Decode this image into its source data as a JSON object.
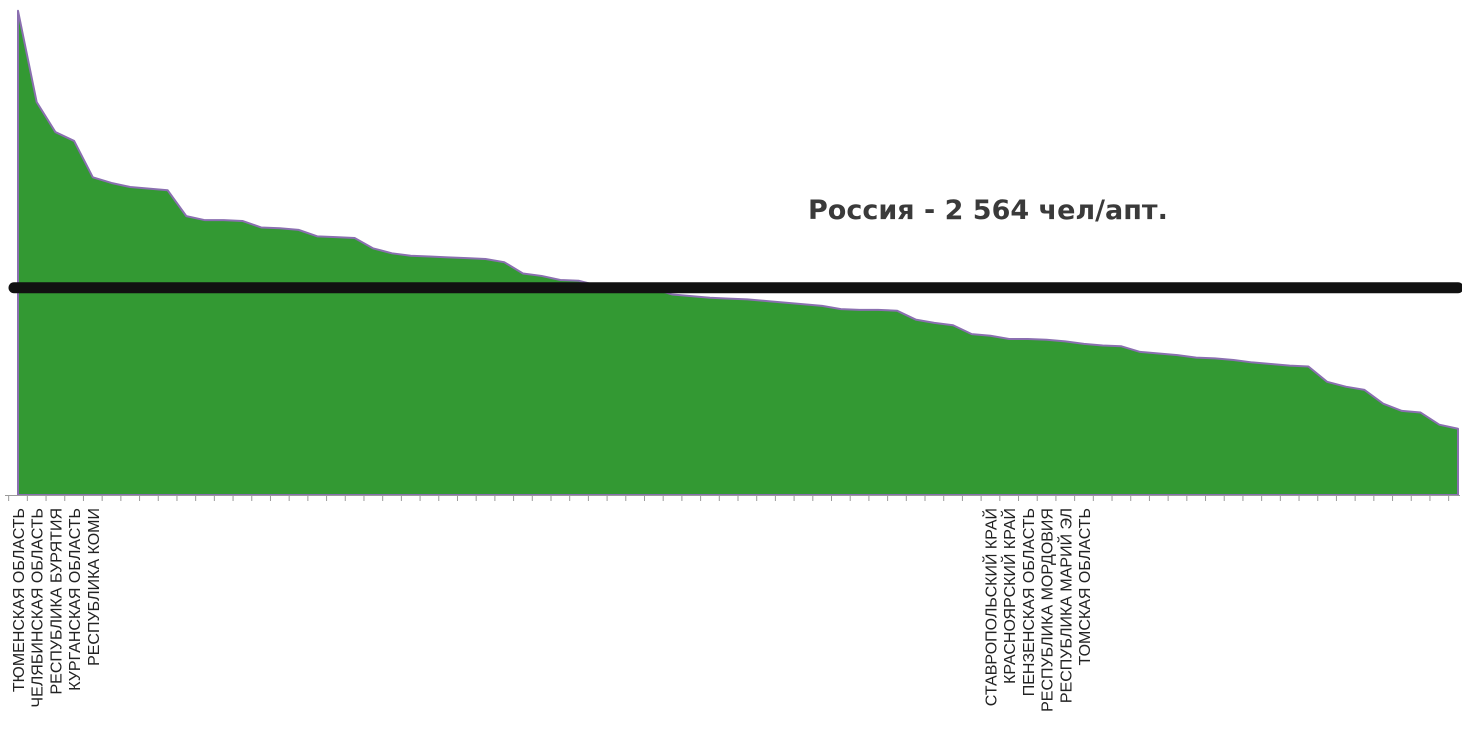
{
  "chart_data": {
    "type": "area",
    "title": "",
    "xlabel": "",
    "ylabel": "",
    "ylim": [
      0,
      6000
    ],
    "grid": false,
    "legend": "none",
    "colors": {
      "area_fill": "#339933",
      "area_stroke": "#8a6fb0",
      "reference_line": "#111111",
      "axis": "#9a9a9a"
    },
    "values": [
      5990,
      4860,
      4490,
      4380,
      3930,
      3860,
      3810,
      3790,
      3770,
      3450,
      3400,
      3400,
      3390,
      3310,
      3300,
      3280,
      3200,
      3190,
      3180,
      3050,
      2990,
      2960,
      2950,
      2940,
      2930,
      2920,
      2880,
      2740,
      2710,
      2660,
      2650,
      2590,
      2580,
      2570,
      2550,
      2480,
      2460,
      2440,
      2430,
      2420,
      2400,
      2380,
      2360,
      2340,
      2300,
      2290,
      2290,
      2280,
      2170,
      2130,
      2100,
      1990,
      1970,
      1930,
      1930,
      1920,
      1900,
      1870,
      1850,
      1840,
      1770,
      1750,
      1730,
      1700,
      1690,
      1670,
      1640,
      1620,
      1600,
      1590,
      1400,
      1340,
      1300,
      1130,
      1040,
      1020,
      870,
      820
    ],
    "categories_shown": [
      {
        "index": 0,
        "label": "ТЮМЕНСКАЯ ОБЛАСТЬ"
      },
      {
        "index": 1,
        "label": "ЧЕЛЯБИНСКАЯ ОБЛАСТЬ"
      },
      {
        "index": 2,
        "label": "РЕСПУБЛИКА БУРЯТИЯ"
      },
      {
        "index": 3,
        "label": "КУРГАНСКАЯ ОБЛАСТЬ"
      },
      {
        "index": 4,
        "label": "РЕСПУБЛИКА КОМИ"
      },
      {
        "index": 52,
        "label": "СТАВРОПОЛЬСКИЙ КРАЙ"
      },
      {
        "index": 53,
        "label": "КРАСНОЯРСКИЙ КРАЙ"
      },
      {
        "index": 54,
        "label": "ПЕНЗЕНСКАЯ ОБЛАСТЬ"
      },
      {
        "index": 55,
        "label": "РЕСПУБЛИКА МОРДОВИЯ"
      },
      {
        "index": 56,
        "label": "РЕСПУБЛИКА МАРИЙ ЭЛ"
      },
      {
        "index": 57,
        "label": "ТОМСКАЯ ОБЛАСТЬ"
      }
    ],
    "reference_line": {
      "value": 2564,
      "label": "Россия - 2 564 чел/апт."
    }
  }
}
